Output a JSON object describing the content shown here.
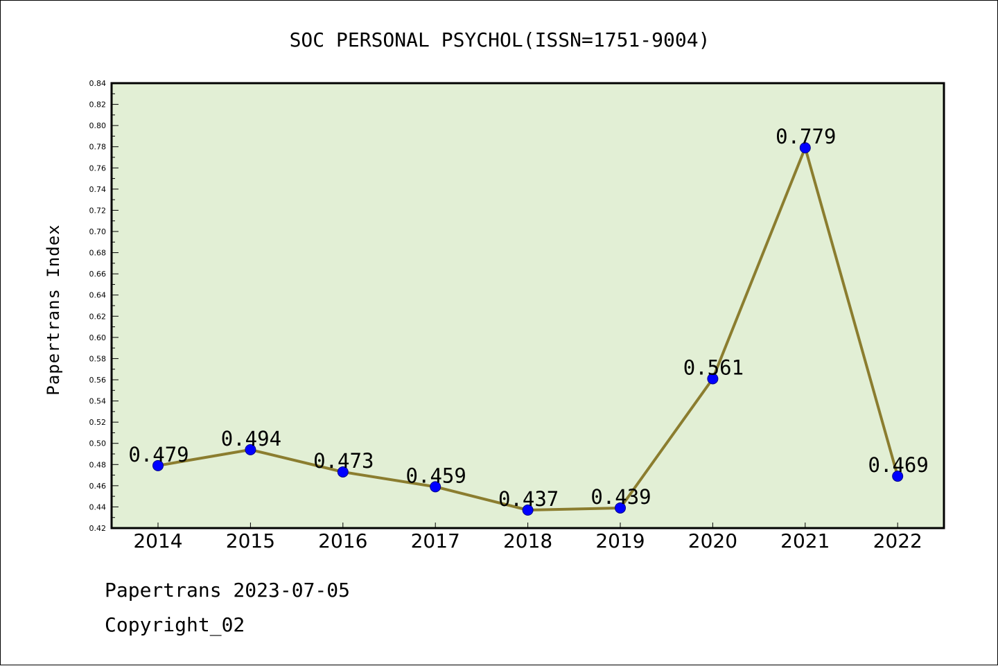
{
  "chart_data": {
    "type": "line",
    "title": "SOC PERSONAL PSYCHOL(ISSN=1751-9004)",
    "xlabel": "",
    "ylabel": "Papertrans Index",
    "categories": [
      "2014",
      "2015",
      "2016",
      "2017",
      "2018",
      "2019",
      "2020",
      "2021",
      "2022"
    ],
    "series": [
      {
        "values": [
          0.479,
          0.494,
          0.473,
          0.459,
          0.437,
          0.439,
          0.561,
          0.779,
          0.469
        ],
        "labels": [
          "0.479",
          "0.494",
          "0.473",
          "0.459",
          "0.437",
          "0.439",
          "0.561",
          "0.779",
          "0.469"
        ]
      }
    ],
    "ylim": [
      0.42,
      0.84
    ],
    "yticks": [
      "0.42",
      "0.44",
      "0.46",
      "0.48",
      "0.50",
      "0.52",
      "0.54",
      "0.56",
      "0.58",
      "0.60",
      "0.62",
      "0.64",
      "0.66",
      "0.68",
      "0.70",
      "0.72",
      "0.74",
      "0.76",
      "0.78",
      "0.80",
      "0.82",
      "0.84"
    ],
    "grid": false,
    "colors": {
      "plot_background": "#e2efd5",
      "line": "#8b7d2f",
      "marker": "#0000ff"
    }
  },
  "footer": {
    "date_line": "Papertrans 2023-07-05",
    "copyright": "Copyright_02"
  }
}
